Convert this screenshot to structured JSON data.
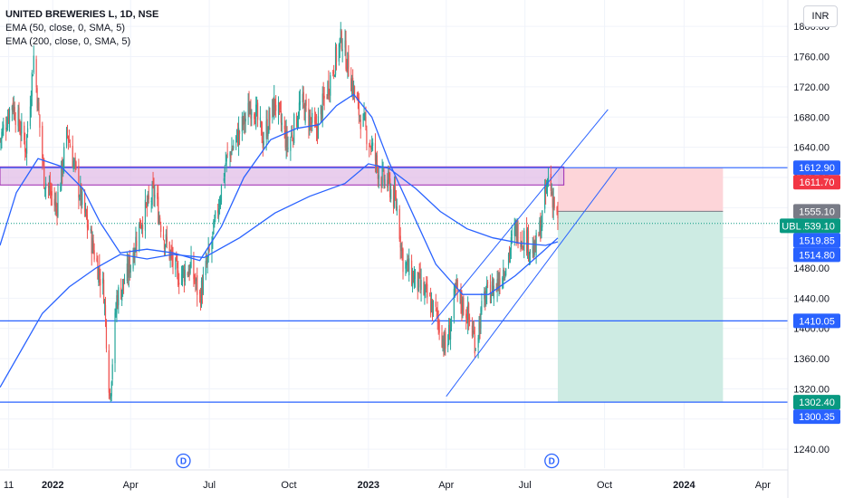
{
  "legend": {
    "title": "UNITED BREWERIES L, 1D, NSE",
    "ema50": "EMA (50, close, 0, SMA, 5)",
    "ema200": "EMA (200, close, 0, SMA, 5)"
  },
  "currency_button": "INR",
  "colors": {
    "up": "#26a69a",
    "down": "#ef5350",
    "ema": "#2962ff",
    "hline": "#2962ff",
    "zone_fill": "#e1bee7",
    "zone_stroke": "#9c27b0",
    "stop_fill": "#fdd5d9",
    "target_fill": "#cdebe3",
    "channel": "#2962ff",
    "grid": "#f0f3fa"
  },
  "chart_data": {
    "type": "candlestick",
    "symbol": "UBL",
    "exchange": "NSE",
    "timeframe": "1D",
    "x_ticks": [
      "11",
      "2022",
      "Apr",
      "Jul",
      "Oct",
      "2023",
      "Apr",
      "Jul",
      "Oct",
      "2024",
      "Apr"
    ],
    "y_ticks": [
      1240,
      1280,
      1320,
      1360,
      1400,
      1440,
      1480,
      1520,
      1560,
      1600,
      1640,
      1680,
      1720,
      1760,
      1800
    ],
    "y_range": [
      1215,
      1835
    ],
    "x_range": [
      "2021-11-01",
      "2024-04-30"
    ],
    "close_anchors": [
      [
        "2021-11-01",
        1650
      ],
      [
        "2021-11-15",
        1700
      ],
      [
        "2021-12-01",
        1640
      ],
      [
        "2021-12-10",
        1760
      ],
      [
        "2021-12-22",
        1600
      ],
      [
        "2022-01-05",
        1560
      ],
      [
        "2022-01-18",
        1660
      ],
      [
        "2022-02-01",
        1580
      ],
      [
        "2022-02-18",
        1500
      ],
      [
        "2022-03-01",
        1450
      ],
      [
        "2022-03-08",
        1310
      ],
      [
        "2022-03-16",
        1440
      ],
      [
        "2022-03-28",
        1470
      ],
      [
        "2022-04-12",
        1540
      ],
      [
        "2022-04-28",
        1580
      ],
      [
        "2022-05-10",
        1520
      ],
      [
        "2022-05-25",
        1470
      ],
      [
        "2022-06-10",
        1480
      ],
      [
        "2022-06-20",
        1440
      ],
      [
        "2022-07-05",
        1520
      ],
      [
        "2022-07-20",
        1620
      ],
      [
        "2022-08-05",
        1660
      ],
      [
        "2022-08-20",
        1700
      ],
      [
        "2022-09-01",
        1650
      ],
      [
        "2022-09-15",
        1700
      ],
      [
        "2022-09-30",
        1640
      ],
      [
        "2022-10-15",
        1700
      ],
      [
        "2022-11-01",
        1660
      ],
      [
        "2022-11-15",
        1720
      ],
      [
        "2022-12-01",
        1785
      ],
      [
        "2022-12-10",
        1740
      ],
      [
        "2022-12-20",
        1690
      ],
      [
        "2023-01-05",
        1640
      ],
      [
        "2023-01-15",
        1600
      ],
      [
        "2023-01-25",
        1590
      ],
      [
        "2023-02-03",
        1560
      ],
      [
        "2023-02-10",
        1490
      ],
      [
        "2023-02-20",
        1470
      ],
      [
        "2023-03-05",
        1450
      ],
      [
        "2023-03-20",
        1420
      ],
      [
        "2023-04-01",
        1370
      ],
      [
        "2023-04-12",
        1450
      ],
      [
        "2023-04-25",
        1420
      ],
      [
        "2023-05-05",
        1380
      ],
      [
        "2023-05-15",
        1440
      ],
      [
        "2023-05-30",
        1460
      ],
      [
        "2023-06-10",
        1490
      ],
      [
        "2023-06-20",
        1530
      ],
      [
        "2023-07-01",
        1520
      ],
      [
        "2023-07-12",
        1500
      ],
      [
        "2023-07-20",
        1540
      ],
      [
        "2023-07-28",
        1600
      ],
      [
        "2023-08-03",
        1570
      ],
      [
        "2023-08-08",
        1539.1
      ]
    ],
    "ema50_anchors": [
      [
        "2021-11-01",
        1510
      ],
      [
        "2021-11-20",
        1580
      ],
      [
        "2021-12-15",
        1625
      ],
      [
        "2022-01-10",
        1615
      ],
      [
        "2022-02-05",
        1585
      ],
      [
        "2022-02-25",
        1540
      ],
      [
        "2022-03-20",
        1500
      ],
      [
        "2022-04-20",
        1505
      ],
      [
        "2022-05-20",
        1500
      ],
      [
        "2022-06-20",
        1490
      ],
      [
        "2022-07-15",
        1535
      ],
      [
        "2022-08-10",
        1600
      ],
      [
        "2022-09-10",
        1650
      ],
      [
        "2022-10-10",
        1665
      ],
      [
        "2022-11-05",
        1670
      ],
      [
        "2022-11-25",
        1695
      ],
      [
        "2022-12-15",
        1710
      ],
      [
        "2023-01-05",
        1680
      ],
      [
        "2023-01-25",
        1620
      ],
      [
        "2023-02-20",
        1555
      ],
      [
        "2023-03-20",
        1485
      ],
      [
        "2023-04-20",
        1445
      ],
      [
        "2023-05-20",
        1445
      ],
      [
        "2023-06-20",
        1470
      ],
      [
        "2023-07-20",
        1500
      ],
      [
        "2023-08-08",
        1519.85
      ]
    ],
    "ema200_anchors": [
      [
        "2021-11-01",
        1322
      ],
      [
        "2021-11-25",
        1370
      ],
      [
        "2021-12-20",
        1420
      ],
      [
        "2022-01-20",
        1455
      ],
      [
        "2022-02-20",
        1480
      ],
      [
        "2022-03-20",
        1498
      ],
      [
        "2022-04-20",
        1492
      ],
      [
        "2022-05-20",
        1498
      ],
      [
        "2022-06-25",
        1494
      ],
      [
        "2022-08-05",
        1520
      ],
      [
        "2022-09-15",
        1553
      ],
      [
        "2022-10-25",
        1575
      ],
      [
        "2022-12-05",
        1592
      ],
      [
        "2023-01-01",
        1618
      ],
      [
        "2023-01-25",
        1612
      ],
      [
        "2023-02-25",
        1585
      ],
      [
        "2023-03-25",
        1555
      ],
      [
        "2023-04-25",
        1532
      ],
      [
        "2023-05-25",
        1520
      ],
      [
        "2023-06-25",
        1513
      ],
      [
        "2023-07-25",
        1510
      ],
      [
        "2023-08-08",
        1514.8
      ]
    ],
    "horizontal_lines": [
      1612.9,
      1410.05,
      1302.4
    ],
    "resistance_zone": {
      "from": "2021-11-01",
      "to": "2023-08-15",
      "top": 1614,
      "bottom": 1590
    },
    "channel": {
      "upper": [
        [
          "2023-03-15",
          1405
        ],
        [
          "2023-10-05",
          1690
        ]
      ],
      "lower": [
        [
          "2023-04-01",
          1310
        ],
        [
          "2023-10-15",
          1612
        ]
      ]
    },
    "position": {
      "from": "2023-08-08",
      "to": "2024-02-15",
      "stop": 1612.9,
      "entry": 1555.1,
      "target": 1302.4
    },
    "dividend_markers": [
      "2022-06-01",
      "2023-08-01"
    ],
    "dividend_label": "D",
    "price_labels": [
      {
        "value": 1612.9,
        "text": "1612.90",
        "bg": "#2962ff"
      },
      {
        "value": 1611.7,
        "text": "1611.70",
        "bg": "#f23645"
      },
      {
        "value": 1555.1,
        "text": "1555.10",
        "bg": "#787b86"
      },
      {
        "value": 1539.1,
        "text": "1539.10",
        "bg": "#089981",
        "tag": "UBL"
      },
      {
        "value": 1519.85,
        "text": "1519.85",
        "bg": "#2962ff"
      },
      {
        "value": 1514.8,
        "text": "1514.80",
        "bg": "#2962ff"
      },
      {
        "value": 1410.05,
        "text": "1410.05",
        "bg": "#2962ff"
      },
      {
        "value": 1302.4,
        "text": "1302.40",
        "bg": "#089981"
      },
      {
        "value": 1300.35,
        "text": "1300.35",
        "bg": "#2962ff"
      }
    ]
  }
}
